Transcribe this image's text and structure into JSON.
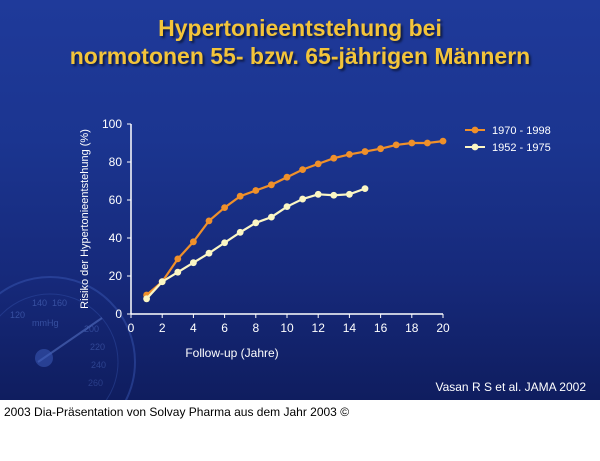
{
  "title": {
    "line1": "Hypertonieentstehung bei",
    "line2": "normotonen 55- bzw. 65-jährigen Männern"
  },
  "gauge_labels": [
    "120",
    "140",
    "160",
    "mmHg",
    "200",
    "220",
    "240",
    "260"
  ],
  "citation": "Vasan R S et al. JAMA 2002",
  "footer": "2003 Dia-Präsentation von Solvay Pharma aus dem Jahr 2003 ©",
  "colors": {
    "series1": "#f0902a",
    "series2": "#fbf6c4",
    "title": "#f3c43a",
    "background": "#1b3590"
  },
  "chart_data": {
    "type": "line",
    "title": "",
    "xlabel": "Follow-up (Jahre)",
    "ylabel": "Risiko der Hypertonieentstehung (%)",
    "xlim": [
      0,
      20
    ],
    "ylim": [
      0,
      100
    ],
    "xticks": [
      0,
      2,
      4,
      6,
      8,
      10,
      12,
      14,
      16,
      18,
      20
    ],
    "yticks": [
      0,
      20,
      40,
      60,
      80,
      100
    ],
    "grid": false,
    "legend_position": "top-right",
    "series": [
      {
        "name": "1970 - 1998",
        "color": "#f0902a",
        "x": [
          1,
          2,
          3,
          4,
          5,
          6,
          7,
          8,
          9,
          10,
          11,
          12,
          13,
          14,
          15,
          16,
          17,
          18,
          19,
          20
        ],
        "y": [
          10,
          17,
          29,
          38,
          49,
          56,
          62,
          65,
          68,
          72,
          76,
          79,
          82,
          84,
          85.5,
          87,
          89,
          90,
          90,
          91
        ]
      },
      {
        "name": "1952 - 1975",
        "color": "#fbf6c4",
        "x": [
          1,
          2,
          3,
          4,
          5,
          6,
          7,
          8,
          9,
          10,
          11,
          12,
          13,
          14,
          15
        ],
        "y": [
          8,
          17,
          22,
          27,
          32,
          37.5,
          43,
          48,
          51,
          56.5,
          60.5,
          63,
          62.5,
          63,
          66
        ]
      }
    ]
  }
}
